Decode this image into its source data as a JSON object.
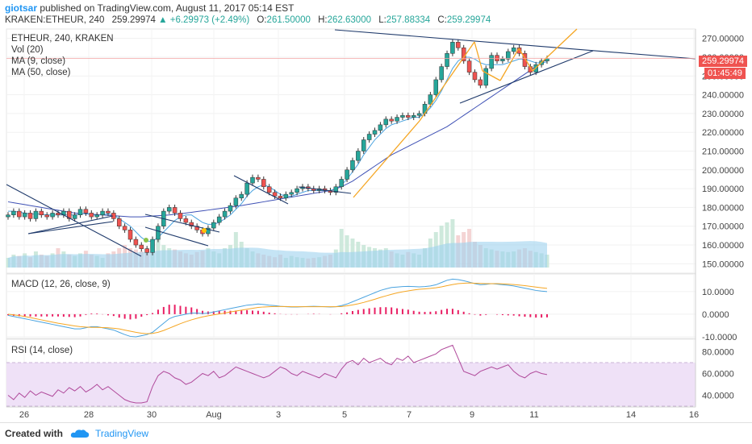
{
  "header": {
    "author": "giotsar",
    "published_text": "published on TradingView.com, August 11, 2017 05:14 EST",
    "symbol": "KRAKEN:ETHEUR, 240",
    "last": "259.29974",
    "change": "+6.29973 (+2.49%)",
    "open_label": "O:",
    "open": "261.50000",
    "high_label": "H:",
    "high": "262.63000",
    "low_label": "L:",
    "low": "257.88334",
    "close_label": "C:",
    "close": "259.29974"
  },
  "legend": {
    "symbol": "ETHEUR, 240, KRAKEN",
    "vol": "Vol (20)",
    "ma9": "MA (9, close)",
    "ma50": "MA (50, close)",
    "macd": "MACD (12, 26, close, 9)",
    "rsi": "RSI (14, close)"
  },
  "price_tag": "259.29974",
  "time_tag": "01:45:49",
  "footer": {
    "created": "Created with",
    "brand": "TradingView"
  },
  "colors": {
    "up": "#26a69a",
    "down": "#ef5350",
    "ma9": "#4aa3df",
    "ma50": "#3f51b5",
    "trend": "#1f3a6b",
    "orange": "#f5a623",
    "macd": "#4aa3df",
    "signal": "#f5a623",
    "rsi": "#b04a9b",
    "rsi_band": "#efe1f7",
    "vol": "#9fd2ee"
  },
  "chart_data": [
    {
      "type": "candlestick",
      "title": "ETHEUR, 240, KRAKEN",
      "ylim": [
        145,
        275
      ],
      "y_ticks": [
        "150.00000",
        "160.00000",
        "170.00000",
        "180.00000",
        "190.00000",
        "200.00000",
        "210.00000",
        "220.00000",
        "230.00000",
        "240.00000",
        "250.00000",
        "260.00000",
        "270.00000"
      ],
      "x_ticks": [
        "26",
        "28",
        "30",
        "Aug",
        "3",
        "5",
        "7",
        "9",
        "11",
        "14",
        "16"
      ],
      "closes": [
        176,
        178,
        175,
        177,
        174,
        178,
        176,
        175,
        177,
        176,
        178,
        174,
        176,
        179,
        177,
        175,
        176,
        178,
        177,
        174,
        170,
        168,
        163,
        160,
        158,
        156,
        163,
        170,
        178,
        180,
        177,
        174,
        172,
        170,
        168,
        166,
        169,
        172,
        175,
        178,
        181,
        185,
        187,
        193,
        196,
        195,
        191,
        188,
        186,
        185,
        187,
        188,
        190,
        191,
        190,
        189,
        190,
        189,
        188,
        191,
        195,
        200,
        205,
        210,
        216,
        219,
        221,
        224,
        227,
        226,
        228,
        229,
        228,
        229,
        230,
        235,
        240,
        248,
        255,
        262,
        268,
        265,
        258,
        252,
        248,
        245,
        254,
        261,
        258,
        259,
        263,
        265,
        262,
        255,
        252,
        256,
        258,
        259.3
      ],
      "ma9": [
        178,
        178,
        177.5,
        177,
        176.5,
        176.5,
        176.5,
        176,
        176,
        176,
        176,
        176,
        176,
        176.5,
        177,
        176,
        176,
        176,
        176.5,
        176,
        174,
        172,
        170,
        167,
        164,
        162,
        162,
        164,
        167,
        170,
        173,
        175,
        176,
        176,
        174,
        172,
        171,
        171,
        172,
        174,
        176,
        179,
        182,
        186,
        189,
        191,
        192,
        191,
        189,
        187,
        186,
        186,
        187,
        188,
        189,
        189,
        189,
        189,
        189,
        190,
        192,
        195,
        199,
        203,
        208,
        212,
        216,
        219,
        222,
        224,
        225,
        226,
        227,
        228,
        228,
        230,
        233,
        237,
        242,
        248,
        254,
        258,
        260,
        260,
        259,
        257,
        256,
        256,
        256,
        256,
        257,
        258,
        259,
        259,
        258,
        257,
        257,
        257.5
      ],
      "ma50": [
        183,
        182.5,
        182,
        181.5,
        181,
        180.5,
        180,
        179.5,
        179,
        178.5,
        178,
        177.5,
        177,
        176.8,
        176.6,
        176.4,
        176.2,
        176,
        175.8,
        175.6,
        175.4,
        175.2,
        175,
        175,
        175,
        175.2,
        175.4,
        175.6,
        175.8,
        176,
        176.3,
        176.6,
        177,
        177.4,
        177.8,
        178.2,
        178.6,
        179,
        179.4,
        179.8,
        180.2,
        180.6,
        181,
        181.5,
        182,
        182.5,
        183,
        183.5,
        184,
        184.5,
        185,
        185.5,
        186,
        186.5,
        187,
        187.5,
        188,
        188.5,
        189,
        190,
        191,
        192.5,
        194,
        196,
        198,
        200,
        202,
        204,
        206,
        208,
        209.5,
        211,
        212.5,
        214,
        215.5,
        217,
        218.5,
        220,
        221.5,
        223,
        225,
        227,
        229,
        231,
        233,
        235,
        237,
        239,
        241,
        243,
        245,
        247,
        249,
        251,
        253,
        255,
        257,
        259
      ],
      "volume": [
        0.15,
        0.2,
        0.18,
        0.22,
        0.16,
        0.25,
        0.2,
        0.18,
        0.22,
        0.3,
        0.25,
        0.2,
        0.18,
        0.22,
        0.26,
        0.2,
        0.18,
        0.15,
        0.22,
        0.25,
        0.3,
        0.35,
        0.3,
        0.28,
        0.25,
        0.3,
        0.4,
        0.45,
        0.35,
        0.3,
        0.28,
        0.25,
        0.22,
        0.2,
        0.24,
        0.26,
        0.3,
        0.25,
        0.22,
        0.3,
        0.35,
        0.55,
        0.4,
        0.3,
        0.25,
        0.22,
        0.2,
        0.18,
        0.16,
        0.2,
        0.15,
        0.18,
        0.16,
        0.15,
        0.14,
        0.15,
        0.16,
        0.18,
        0.2,
        0.28,
        0.6,
        0.5,
        0.45,
        0.4,
        0.35,
        0.32,
        0.3,
        0.28,
        0.3,
        0.25,
        0.22,
        0.2,
        0.24,
        0.22,
        0.2,
        0.3,
        0.45,
        0.55,
        0.65,
        0.7,
        0.75,
        0.5,
        0.55,
        0.6,
        0.4,
        0.35,
        0.3,
        0.28,
        0.26,
        0.25,
        0.24,
        0.25,
        0.28,
        0.3,
        0.26,
        0.24,
        0.22,
        0.2
      ]
    },
    {
      "type": "line",
      "title": "MACD (12, 26, close, 9)",
      "ylim": [
        -10,
        16
      ],
      "y_ticks": [
        "10.0000",
        "0.0000",
        "-10.0000"
      ],
      "macd": [
        -0.5,
        -1,
        -1.5,
        -2,
        -2.5,
        -3,
        -3.5,
        -4,
        -4.5,
        -5,
        -5.5,
        -6,
        -6.5,
        -6.5,
        -6,
        -5.5,
        -5.5,
        -6,
        -6.5,
        -7,
        -8,
        -9,
        -9.8,
        -10,
        -9.5,
        -9,
        -8,
        -6,
        -4,
        -2,
        -1,
        -0.5,
        0,
        0.5,
        0.5,
        0.3,
        0.5,
        1,
        1.5,
        2,
        2.5,
        3,
        3.5,
        4,
        4.2,
        4.5,
        4.3,
        4,
        3.8,
        3.5,
        3.3,
        3.2,
        3.2,
        3.3,
        3.4,
        3.5,
        3.4,
        3.3,
        3.2,
        3.3,
        3.8,
        4.5,
        5.5,
        6.5,
        7.5,
        8.5,
        9.5,
        10.5,
        11.2,
        11.8,
        12,
        12.2,
        12.3,
        12.2,
        12.1,
        12.2,
        12.5,
        13,
        14,
        15,
        15.5,
        15.3,
        14.8,
        14.2,
        13.5,
        13,
        13.2,
        13.5,
        13.3,
        13,
        12.8,
        12.5,
        12,
        11.5,
        11,
        10.5,
        10.2,
        10
      ],
      "signal": [
        0,
        -0.3,
        -0.6,
        -1,
        -1.5,
        -2,
        -2.5,
        -3,
        -3.5,
        -4,
        -4.4,
        -4.8,
        -5.2,
        -5.5,
        -5.7,
        -5.8,
        -5.8,
        -5.9,
        -6,
        -6.2,
        -6.5,
        -7,
        -7.5,
        -8,
        -8.4,
        -8.6,
        -8.5,
        -8,
        -7.2,
        -6.2,
        -5.2,
        -4.2,
        -3.3,
        -2.5,
        -1.8,
        -1.2,
        -0.7,
        -0.3,
        0.1,
        0.5,
        1,
        1.4,
        1.8,
        2.2,
        2.6,
        3,
        3.2,
        3.3,
        3.4,
        3.4,
        3.4,
        3.3,
        3.3,
        3.3,
        3.3,
        3.3,
        3.3,
        3.3,
        3.3,
        3.3,
        3.4,
        3.7,
        4.1,
        4.6,
        5.2,
        5.9,
        6.6,
        7.4,
        8.1,
        8.8,
        9.4,
        9.9,
        10.3,
        10.7,
        11,
        11.2,
        11.4,
        11.7,
        12.1,
        12.6,
        13.1,
        13.5,
        13.7,
        13.8,
        13.7,
        13.6,
        13.5,
        13.5,
        13.5,
        13.4,
        13.3,
        13.1,
        12.9,
        12.6,
        12.3,
        12,
        11.7,
        11.4
      ]
    },
    {
      "type": "line",
      "title": "RSI (14, close)",
      "ylim": [
        30,
        90
      ],
      "y_ticks": [
        "80.0000",
        "60.0000",
        "40.0000"
      ],
      "band": [
        30,
        70
      ],
      "rsi": [
        40,
        36,
        42,
        38,
        44,
        40,
        43,
        41,
        39,
        45,
        42,
        47,
        44,
        48,
        43,
        46,
        50,
        45,
        48,
        44,
        40,
        36,
        34,
        33,
        33,
        34,
        48,
        58,
        62,
        60,
        56,
        54,
        50,
        52,
        56,
        60,
        58,
        62,
        56,
        58,
        62,
        66,
        64,
        62,
        60,
        58,
        56,
        58,
        62,
        66,
        64,
        60,
        58,
        62,
        60,
        58,
        56,
        60,
        58,
        56,
        64,
        70,
        72,
        68,
        74,
        70,
        72,
        74,
        70,
        68,
        74,
        72,
        76,
        70,
        72,
        74,
        76,
        78,
        82,
        84,
        86,
        74,
        62,
        60,
        58,
        62,
        64,
        66,
        64,
        66,
        68,
        62,
        58,
        56,
        60,
        62,
        60,
        59
      ]
    }
  ]
}
